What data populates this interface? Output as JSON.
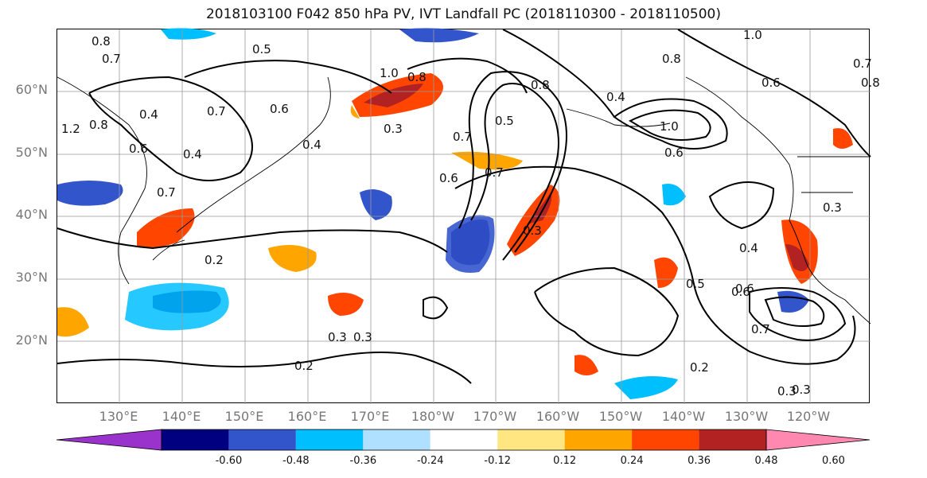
{
  "title": "2018103100 F042 850 hPa PV, IVT Landfall PC (2018110300 - 2018110500)",
  "lat_labels": [
    "60°N",
    "50°N",
    "40°N",
    "30°N",
    "20°N"
  ],
  "lon_labels": [
    "130°E",
    "140°E",
    "150°E",
    "160°E",
    "170°E",
    "180°W",
    "170°W",
    "160°W",
    "150°W",
    "140°W",
    "130°W",
    "120°W"
  ],
  "colorbar": {
    "ticks": [
      "-0.60",
      "-0.48",
      "-0.36",
      "-0.24",
      "-0.12",
      "0.12",
      "0.24",
      "0.36",
      "0.48",
      "0.60"
    ],
    "colors": [
      "#9933cc",
      "#000080",
      "#3355cc",
      "#00bfff",
      "#b0e0ff",
      "#ffffff",
      "#ffe680",
      "#ffa500",
      "#ff4500",
      "#b22222",
      "#ff88b0"
    ]
  },
  "contour_labels": [
    "0.8",
    "0.5",
    "0.7",
    "0.6",
    "0.4",
    "0.4",
    "0.7",
    "1.0",
    "0.8",
    "0.5",
    "0.6",
    "0.3",
    "0.2",
    "0.3",
    "0.7",
    "0.7",
    "0.6",
    "1.0",
    "0.8",
    "0.6",
    "0.4",
    "0.3",
    "0.6",
    "0.7",
    "0.3",
    "0.2",
    "0.3",
    "1.0",
    "0.7",
    "0.8",
    "0.8",
    "0.3",
    "0.4",
    "0.4",
    "0.5",
    "0.6",
    "0.7",
    "0.2",
    "0.3",
    "1.2",
    "0.8",
    "0.6"
  ]
}
